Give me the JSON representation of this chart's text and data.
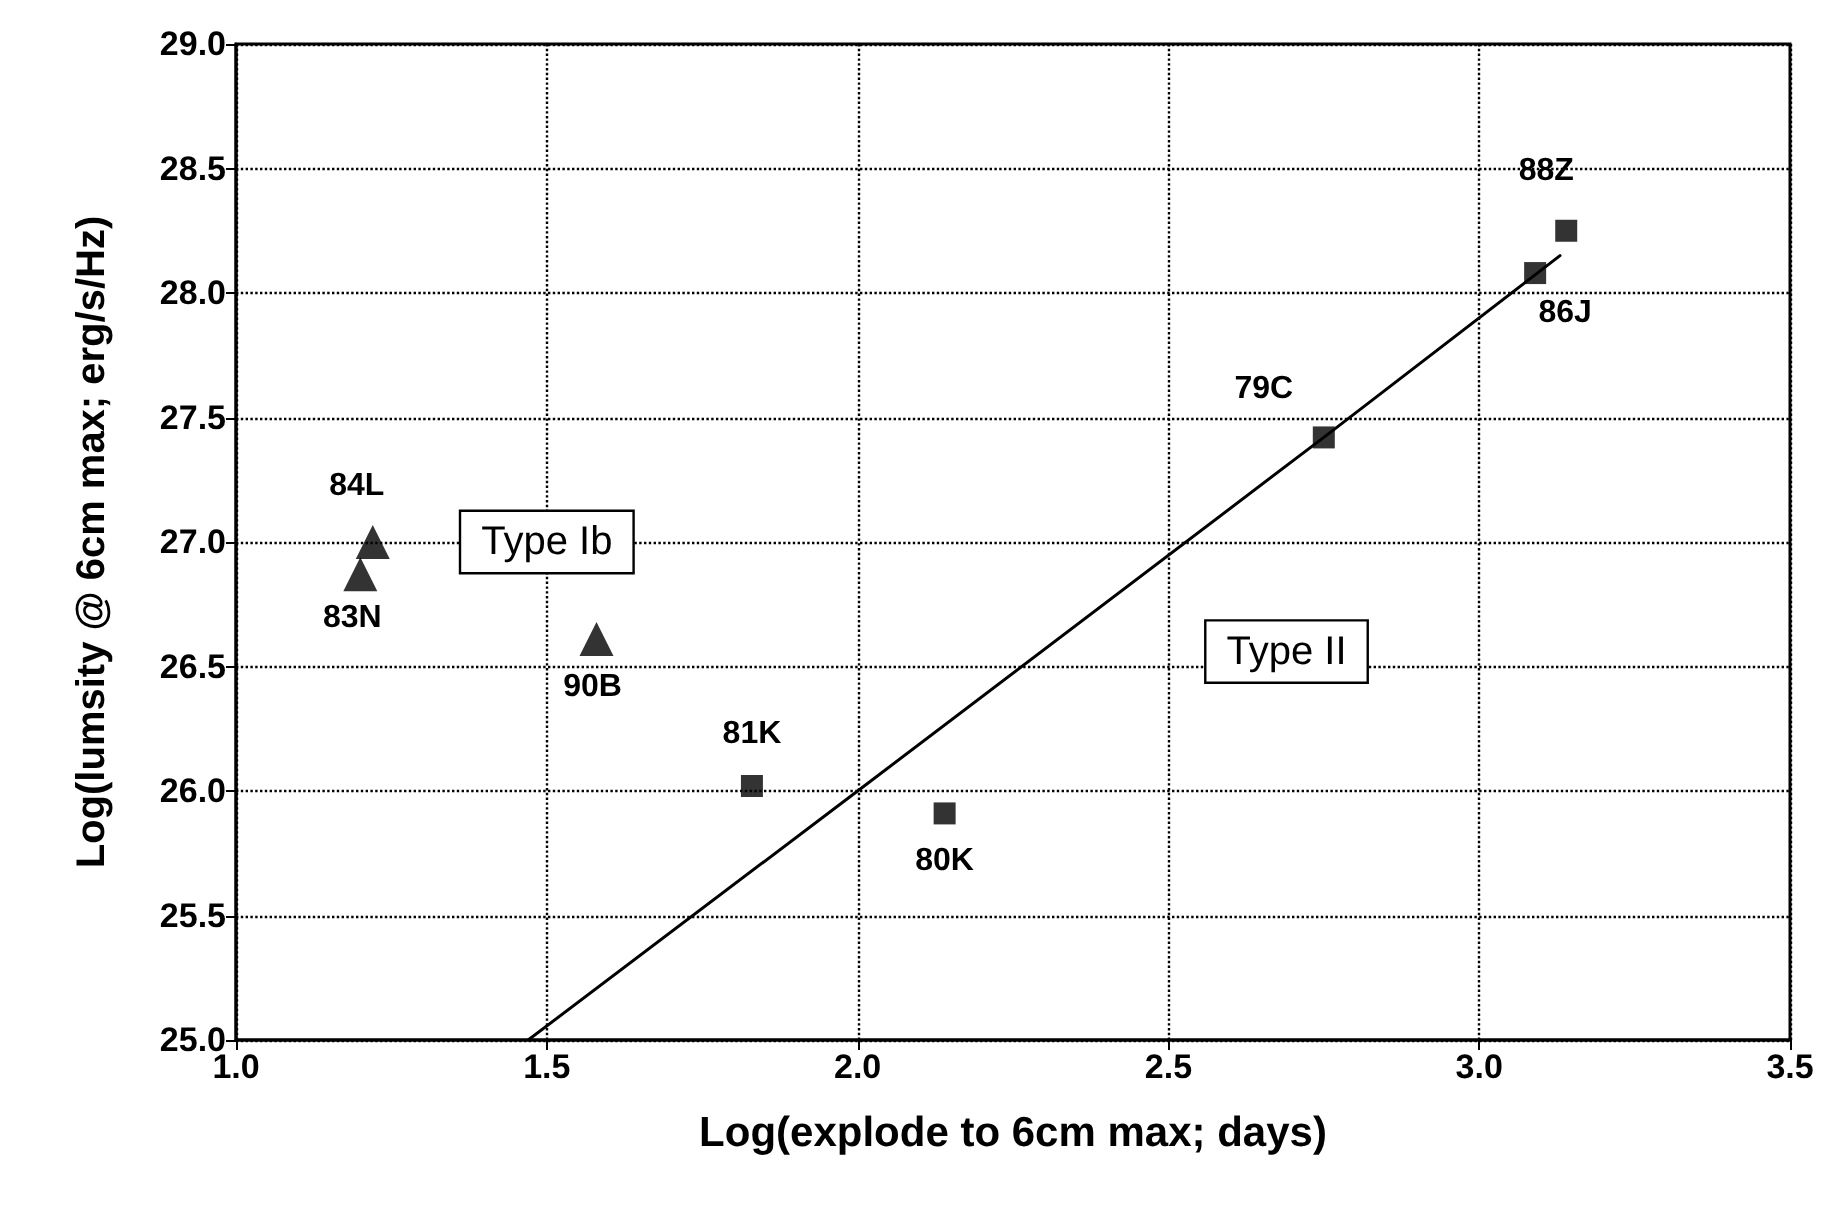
{
  "chart_data": {
    "type": "scatter",
    "xlabel": "Log(explode to 6cm max; days)",
    "ylabel": "Log(lumsity @ 6cm max; erg/s/Hz)",
    "xlim": [
      1.0,
      3.5
    ],
    "xticks": [
      {
        "value": 1.0,
        "label": "1.0"
      },
      {
        "value": 1.5,
        "label": "1.5"
      },
      {
        "value": 2.0,
        "label": "2.0"
      },
      {
        "value": 2.5,
        "label": "2.5"
      },
      {
        "value": 3.0,
        "label": "3.0"
      },
      {
        "value": 3.5,
        "label": "3.5"
      }
    ],
    "ylim": [
      25.0,
      29.0
    ],
    "yticks": [
      {
        "value": 25.0,
        "label": "25.0"
      },
      {
        "value": 25.5,
        "label": "25.5"
      },
      {
        "value": 26.0,
        "label": "26.0"
      },
      {
        "value": 26.5,
        "label": "26.5"
      },
      {
        "value": 27.0,
        "label": "27.0"
      },
      {
        "value": 27.5,
        "label": "27.5"
      },
      {
        "value": 28.0,
        "label": "28.0"
      },
      {
        "value": 28.5,
        "label": "28.5"
      },
      {
        "value": 29.0,
        "label": "29.0"
      }
    ],
    "grid": true,
    "series": [
      {
        "marker": "triangle",
        "color": "#000000",
        "x": [
          1.22,
          1.2,
          1.58
        ],
        "values": [
          27.0,
          26.87,
          26.61
        ]
      },
      {
        "marker": "square",
        "color": "#000000",
        "x": [
          1.83,
          2.14,
          2.75,
          3.09,
          3.14
        ],
        "values": [
          26.02,
          25.91,
          27.42,
          28.08,
          28.25
        ]
      },
      {
        "type": "line",
        "marker": "none",
        "line_style": "solid",
        "color": "#000000",
        "x": [
          1.47,
          2.0,
          2.75,
          3.13
        ],
        "values": [
          25.0,
          26.0,
          27.42,
          28.15
        ]
      }
    ],
    "annotations": [
      {
        "text": "84L",
        "x": 1.22,
        "y": 27.0
      },
      {
        "text": "83N",
        "x": 1.2,
        "y": 26.87
      },
      {
        "text": "90B",
        "x": 1.58,
        "y": 26.61
      },
      {
        "text": "81K",
        "x": 1.83,
        "y": 26.02
      },
      {
        "text": "80K",
        "x": 2.14,
        "y": 25.91
      },
      {
        "text": "79C",
        "x": 2.75,
        "y": 27.42
      },
      {
        "text": "86J",
        "x": 3.09,
        "y": 28.08
      },
      {
        "text": "88Z",
        "x": 3.14,
        "y": 28.25
      },
      "Type Ib",
      "Type II"
    ]
  }
}
